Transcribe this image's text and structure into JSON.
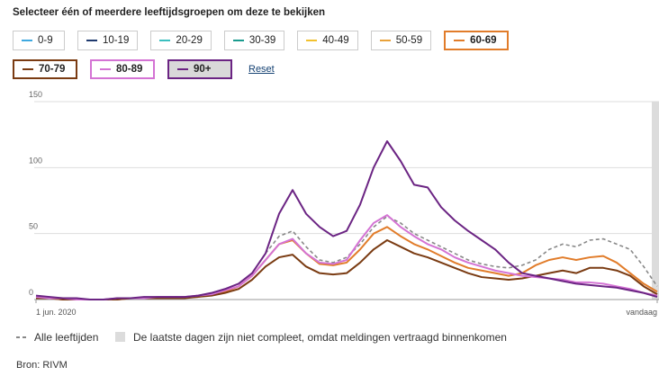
{
  "title": "Selecteer één of meerdere leeftijdsgroepen om deze te bekijken",
  "reset": "Reset",
  "source": "Bron: RIVM",
  "chart_data": {
    "type": "line",
    "categories": [
      "1 jun. 2020",
      null,
      null,
      null,
      null,
      null,
      null,
      null,
      null,
      null,
      null,
      null,
      null,
      null,
      null,
      null,
      null,
      null,
      null,
      null,
      null,
      null,
      null,
      null,
      null,
      null,
      null,
      null,
      null,
      null,
      null,
      null,
      null,
      null,
      null,
      null,
      null,
      null,
      null,
      null,
      null,
      null,
      null,
      null,
      null,
      null,
      "vandaag"
    ],
    "ylim": [
      0,
      150
    ],
    "yticks": [
      0,
      50,
      100,
      150
    ],
    "grid": true,
    "incomplete_note": "De laatste dagen zijn niet compleet, omdat meldingen vertraagd binnenkomen",
    "series": [
      {
        "name": "0-9",
        "color": "#3fa9e0",
        "selected": false
      },
      {
        "name": "10-19",
        "color": "#1f3a6e",
        "selected": false
      },
      {
        "name": "20-29",
        "color": "#3bbfbf",
        "selected": false
      },
      {
        "name": "30-39",
        "color": "#1a9b8e",
        "selected": false
      },
      {
        "name": "40-49",
        "color": "#f2c12e",
        "selected": false
      },
      {
        "name": "50-59",
        "color": "#e9a23b",
        "selected": false
      },
      {
        "name": "60-69",
        "color": "#e17c2a",
        "selected": true,
        "values": [
          1,
          1,
          0,
          0,
          0,
          0,
          0,
          1,
          1,
          1,
          1,
          2,
          2,
          4,
          6,
          10,
          18,
          30,
          42,
          45,
          35,
          27,
          26,
          28,
          38,
          50,
          55,
          48,
          42,
          38,
          33,
          28,
          24,
          22,
          20,
          18,
          20,
          26,
          30,
          32,
          30,
          32,
          33,
          28,
          20,
          12,
          6
        ]
      },
      {
        "name": "70-79",
        "color": "#7a3b12",
        "selected": true,
        "values": [
          1,
          1,
          0,
          0,
          0,
          0,
          0,
          1,
          1,
          1,
          1,
          1,
          2,
          3,
          5,
          8,
          15,
          25,
          32,
          34,
          25,
          20,
          19,
          20,
          28,
          38,
          45,
          40,
          35,
          32,
          28,
          24,
          20,
          17,
          16,
          15,
          16,
          18,
          20,
          22,
          20,
          24,
          24,
          22,
          18,
          10,
          4
        ]
      },
      {
        "name": "80-89",
        "color": "#d473d4",
        "selected": true,
        "values": [
          2,
          1,
          1,
          0,
          0,
          0,
          1,
          1,
          1,
          2,
          2,
          2,
          3,
          4,
          7,
          10,
          18,
          30,
          42,
          46,
          35,
          28,
          27,
          30,
          45,
          58,
          64,
          55,
          48,
          42,
          38,
          32,
          28,
          25,
          22,
          20,
          18,
          17,
          16,
          15,
          13,
          13,
          12,
          10,
          8,
          5,
          3
        ]
      },
      {
        "name": "90+",
        "color": "#6b2483",
        "selected": true,
        "highlighted": true,
        "values": [
          3,
          2,
          1,
          1,
          0,
          0,
          1,
          1,
          2,
          2,
          2,
          2,
          3,
          5,
          8,
          12,
          20,
          35,
          65,
          83,
          65,
          55,
          48,
          52,
          72,
          100,
          120,
          105,
          87,
          85,
          70,
          60,
          52,
          45,
          38,
          28,
          20,
          18,
          16,
          14,
          12,
          11,
          10,
          9,
          7,
          5,
          2
        ]
      },
      {
        "name": "Alle leeftijden",
        "color": "#888888",
        "dashed": true,
        "values": [
          2,
          1,
          1,
          0,
          0,
          0,
          1,
          1,
          1,
          1,
          2,
          2,
          3,
          5,
          8,
          12,
          20,
          35,
          48,
          52,
          40,
          30,
          28,
          32,
          42,
          55,
          63,
          58,
          50,
          45,
          40,
          35,
          30,
          27,
          25,
          24,
          26,
          30,
          38,
          42,
          40,
          45,
          46,
          42,
          38,
          25,
          10
        ]
      }
    ]
  }
}
